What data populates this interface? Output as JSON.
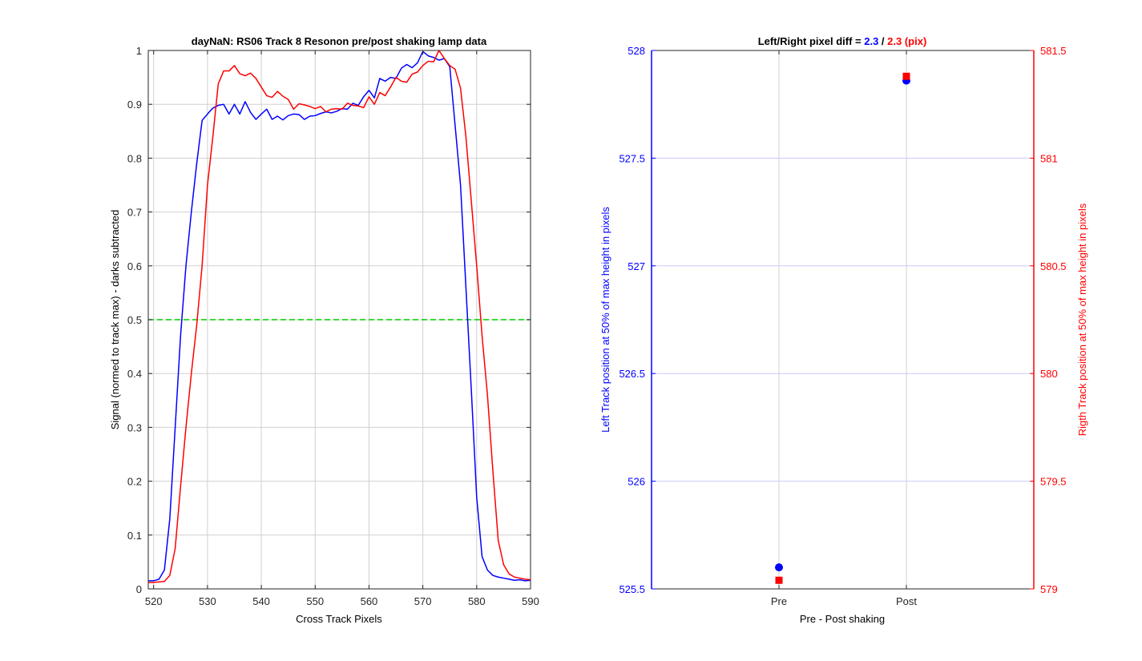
{
  "colors": {
    "blue": "#0000ff",
    "red": "#ff0000",
    "green": "#00cc00",
    "grid": "#d0d0d0",
    "grid_blue": "#c8c8ff",
    "axis": "#262626"
  },
  "chart_data": [
    {
      "type": "line",
      "title": "dayNaN: RS06  Track 8 Resonon pre/post shaking lamp data",
      "xlabel": "Cross Track Pixels",
      "ylabel": "Signal (normed to track max) - darks subtracted",
      "xlim": [
        519,
        590
      ],
      "ylim": [
        0,
        1
      ],
      "xticks": [
        520,
        530,
        540,
        550,
        560,
        570,
        580,
        590
      ],
      "yticks": [
        0,
        0.1,
        0.2,
        0.3,
        0.4,
        0.5,
        0.6,
        0.7,
        0.8,
        0.9,
        1
      ],
      "ytick_labels": [
        "0",
        "0.1",
        "0.2",
        "0.3",
        "0.4",
        "0.5",
        "0.6",
        "0.7",
        "0.8",
        "0.9",
        "1"
      ],
      "grid": true,
      "reference_line": {
        "y": 0.5,
        "style": "dashed",
        "color": "#00cc00"
      },
      "series": [
        {
          "color": "#0000ff",
          "x": [
            519,
            520,
            521,
            522,
            523,
            524,
            525,
            526,
            527,
            528,
            529,
            530,
            531,
            532,
            533,
            534,
            535,
            536,
            537,
            538,
            539,
            540,
            541,
            542,
            543,
            544,
            545,
            546,
            547,
            548,
            549,
            550,
            551,
            552,
            553,
            554,
            555,
            556,
            557,
            558,
            559,
            560,
            561,
            562,
            563,
            564,
            565,
            566,
            567,
            568,
            569,
            570,
            571,
            572,
            573,
            574,
            575,
            576,
            577,
            578,
            579,
            580,
            581,
            582,
            583,
            584,
            585,
            586,
            587,
            588,
            589,
            590
          ],
          "y": [
            0.015,
            0.015,
            0.018,
            0.035,
            0.13,
            0.3,
            0.47,
            0.6,
            0.7,
            0.79,
            0.87,
            0.882,
            0.893,
            0.898,
            0.9,
            0.882,
            0.9,
            0.882,
            0.905,
            0.885,
            0.872,
            0.882,
            0.891,
            0.872,
            0.878,
            0.871,
            0.879,
            0.882,
            0.881,
            0.872,
            0.878,
            0.879,
            0.883,
            0.886,
            0.884,
            0.887,
            0.892,
            0.891,
            0.902,
            0.898,
            0.914,
            0.926,
            0.912,
            0.948,
            0.943,
            0.95,
            0.948,
            0.967,
            0.974,
            0.968,
            0.977,
            0.998,
            0.99,
            0.987,
            0.982,
            0.985,
            0.97,
            0.86,
            0.75,
            0.56,
            0.37,
            0.17,
            0.06,
            0.035,
            0.025,
            0.022,
            0.02,
            0.018,
            0.016,
            0.017,
            0.015,
            0.016
          ]
        },
        {
          "color": "#ff0000",
          "x": [
            519,
            520,
            521,
            522,
            523,
            524,
            525,
            526,
            527,
            528,
            529,
            530,
            531,
            532,
            533,
            534,
            535,
            536,
            537,
            538,
            539,
            540,
            541,
            542,
            543,
            544,
            545,
            546,
            547,
            548,
            549,
            550,
            551,
            552,
            553,
            554,
            555,
            556,
            557,
            558,
            559,
            560,
            561,
            562,
            563,
            564,
            565,
            566,
            567,
            568,
            569,
            570,
            571,
            572,
            573,
            574,
            575,
            576,
            577,
            578,
            579,
            580,
            581,
            582,
            583,
            584,
            585,
            586,
            587,
            588,
            589,
            590
          ],
          "y": [
            0.012,
            0.012,
            0.013,
            0.014,
            0.025,
            0.075,
            0.19,
            0.3,
            0.4,
            0.49,
            0.6,
            0.75,
            0.84,
            0.938,
            0.962,
            0.962,
            0.972,
            0.957,
            0.953,
            0.958,
            0.948,
            0.932,
            0.916,
            0.913,
            0.924,
            0.915,
            0.909,
            0.891,
            0.901,
            0.899,
            0.896,
            0.892,
            0.896,
            0.886,
            0.891,
            0.892,
            0.891,
            0.902,
            0.898,
            0.897,
            0.894,
            0.914,
            0.9,
            0.922,
            0.916,
            0.932,
            0.95,
            0.943,
            0.941,
            0.956,
            0.96,
            0.972,
            0.98,
            0.979,
            1.0,
            0.985,
            0.972,
            0.965,
            0.93,
            0.84,
            0.72,
            0.6,
            0.47,
            0.36,
            0.22,
            0.09,
            0.045,
            0.028,
            0.022,
            0.02,
            0.018,
            0.017
          ]
        }
      ]
    },
    {
      "type": "scatter",
      "title_parts": [
        {
          "text": "Left/Right pixel diff = ",
          "color": "#000000"
        },
        {
          "text": "2.3",
          "color": "#0000ff"
        },
        {
          "text": " / ",
          "color": "#000000"
        },
        {
          "text": "2.3 (pix)",
          "color": "#ff0000"
        }
      ],
      "xlabel": "Pre - Post shaking",
      "ylabel_left": "Left Track position at 50% of max height in pixels",
      "ylabel_right": "Rigth Track position at 50% of max height in pixels",
      "categories": [
        "Pre",
        "Post"
      ],
      "xlim": [
        0,
        3
      ],
      "ylim_left": [
        525.5,
        528
      ],
      "yticks_left": [
        525.5,
        526,
        526.5,
        527,
        527.5,
        528
      ],
      "ytick_labels_left": [
        "525.5",
        "526",
        "526.5",
        "527",
        "527.5",
        "528"
      ],
      "ylim_right": [
        579,
        581.5
      ],
      "yticks_right": [
        579,
        579.5,
        580,
        580.5,
        581,
        581.5
      ],
      "ytick_labels_right": [
        "579",
        "579.5",
        "580",
        "580.5",
        "581",
        "581.5"
      ],
      "grid": true,
      "series": [
        {
          "axis": "left",
          "marker": "circle",
          "color": "#0000ff",
          "x": [
            1,
            2
          ],
          "y": [
            525.6,
            527.86
          ]
        },
        {
          "axis": "right",
          "marker": "square",
          "color": "#ff0000",
          "x": [
            1,
            2
          ],
          "y": [
            579.04,
            581.38
          ]
        }
      ]
    }
  ]
}
